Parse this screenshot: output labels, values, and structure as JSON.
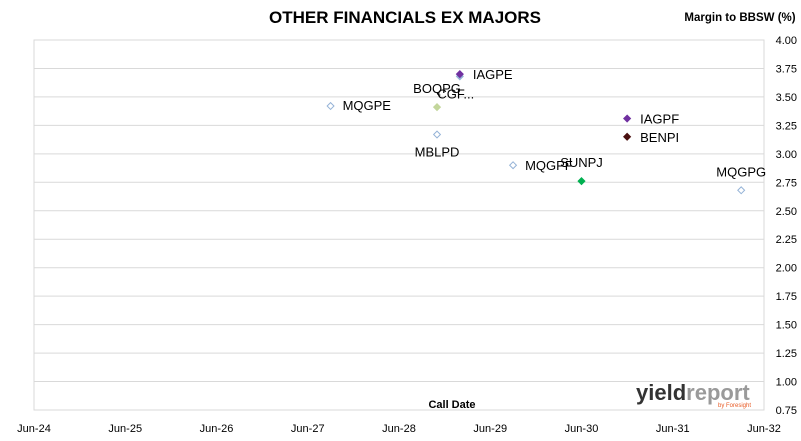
{
  "chart_data": {
    "type": "scatter",
    "title": "OTHER FINANCIALS EX MAJORS",
    "ylabel": "Margin to BBSW (%)",
    "xlabel": "Call Date",
    "x_ticks": [
      "Jun-24",
      "Jun-25",
      "Jun-26",
      "Jun-27",
      "Jun-28",
      "Jun-29",
      "Jun-30",
      "Jun-31",
      "Jun-32"
    ],
    "y_ticks": [
      "4.00",
      "3.75",
      "3.50",
      "3.25",
      "3.00",
      "2.75",
      "2.50",
      "2.25",
      "2.00",
      "1.75",
      "1.50",
      "1.25",
      "1.00",
      "0.75"
    ],
    "ylim": [
      0.75,
      4.0
    ],
    "y_axis_position": "right",
    "grid": true,
    "points": [
      {
        "label": "MQGPE",
        "x": "2027-09",
        "y": 3.42,
        "color": "#c6d9f1",
        "filled": false
      },
      {
        "label": "BOQPG",
        "x": "2028-11",
        "y": 3.41,
        "color": "#c3d69b",
        "filled": true
      },
      {
        "label": "MBLPD",
        "x": "2028-11",
        "y": 3.17,
        "color": "#c6d9f1",
        "filled": false
      },
      {
        "label": "CGF...",
        "x": "2029-02",
        "y": 3.68,
        "color": "#95b3d7",
        "filled": true
      },
      {
        "label": "IAGPE",
        "x": "2029-02",
        "y": 3.7,
        "color": "#7030a0",
        "filled": true
      },
      {
        "label": "MQGPF",
        "x": "2029-09",
        "y": 2.9,
        "color": "#c6d9f1",
        "filled": false
      },
      {
        "label": "SUNPJ",
        "x": "2030-06",
        "y": 2.76,
        "color": "#00b050",
        "filled": true
      },
      {
        "label": "IAGPF",
        "x": "2030-12",
        "y": 3.31,
        "color": "#7030a0",
        "filled": true
      },
      {
        "label": "BENPI",
        "x": "2030-12",
        "y": 3.15,
        "color": "#4a1010",
        "filled": true
      },
      {
        "label": "MQGPG",
        "x": "2032-03",
        "y": 2.68,
        "color": "#c6d9f1",
        "filled": false
      }
    ]
  },
  "logo": {
    "main_dark": "yield",
    "main_light": "report",
    "sub": "by Foresight",
    "accent_color": "#e85a24"
  }
}
